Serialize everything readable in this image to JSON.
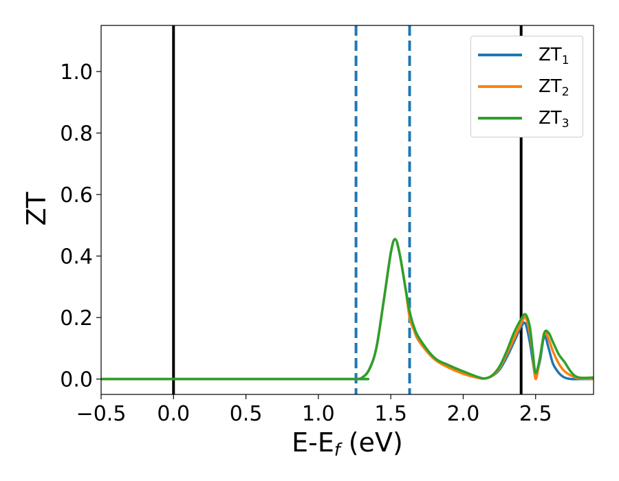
{
  "chart_data": {
    "type": "line",
    "title": "",
    "xlabel_main": "E-E",
    "xlabel_sub": "f",
    "xlabel_unit": " (eV)",
    "ylabel": "ZT",
    "xlim": [
      -0.5,
      2.9
    ],
    "ylim": [
      -0.05,
      1.15
    ],
    "xticks": [
      -0.5,
      0.0,
      0.5,
      1.0,
      1.5,
      2.0,
      2.5
    ],
    "xtick_labels": [
      "−0.5",
      "0.0",
      "0.5",
      "1.0",
      "1.5",
      "2.0",
      "2.5"
    ],
    "yticks": [
      0.0,
      0.2,
      0.4,
      0.6,
      0.8,
      1.0
    ],
    "ytick_labels": [
      "0.0",
      "0.2",
      "0.4",
      "0.6",
      "0.8",
      "1.0"
    ],
    "legend_position": "top-right",
    "vlines_solid": [
      0.0,
      2.4
    ],
    "vlines_dashed": [
      1.26,
      1.63
    ],
    "vline_solid_color": "#000000",
    "vline_dashed_color": "#1f77b4",
    "series": [
      {
        "name": "ZT",
        "subscript": "1",
        "color": "#1f77b4",
        "x": [
          -0.5,
          1.2,
          1.26,
          1.3,
          1.35,
          1.4,
          1.45,
          1.5,
          1.53,
          1.56,
          1.6,
          1.63,
          1.66,
          1.7,
          1.8,
          1.9,
          2.0,
          2.1,
          2.15,
          2.2,
          2.25,
          2.3,
          2.35,
          2.4,
          2.43,
          2.46,
          2.48,
          2.5,
          2.53,
          2.56,
          2.59,
          2.62,
          2.66,
          2.7,
          2.75,
          2.8,
          2.9
        ],
        "y": [
          0.0,
          0.0,
          0.0,
          0.004,
          0.03,
          0.1,
          0.25,
          0.41,
          0.455,
          0.41,
          0.3,
          0.22,
          0.16,
          0.12,
          0.065,
          0.04,
          0.02,
          0.005,
          0.002,
          0.01,
          0.03,
          0.07,
          0.12,
          0.17,
          0.18,
          0.12,
          0.06,
          0.01,
          0.06,
          0.14,
          0.1,
          0.05,
          0.02,
          0.005,
          0.0,
          0.0,
          0.0
        ]
      },
      {
        "name": "ZT",
        "subscript": "2",
        "color": "#ff7f0e",
        "x": [
          -0.5,
          1.2,
          1.26,
          1.3,
          1.35,
          1.4,
          1.45,
          1.5,
          1.53,
          1.56,
          1.6,
          1.63,
          1.66,
          1.7,
          1.8,
          1.9,
          2.0,
          2.1,
          2.15,
          2.2,
          2.25,
          2.3,
          2.35,
          2.4,
          2.43,
          2.46,
          2.48,
          2.5,
          2.53,
          2.56,
          2.59,
          2.62,
          2.66,
          2.7,
          2.75,
          2.8,
          2.9
        ],
        "y": [
          0.0,
          0.0,
          0.0,
          0.004,
          0.03,
          0.1,
          0.25,
          0.41,
          0.455,
          0.41,
          0.3,
          0.2,
          0.16,
          0.12,
          0.065,
          0.037,
          0.017,
          0.004,
          0.002,
          0.01,
          0.035,
          0.08,
          0.13,
          0.18,
          0.2,
          0.15,
          0.08,
          0.0,
          0.07,
          0.15,
          0.13,
          0.09,
          0.05,
          0.025,
          0.01,
          0.002,
          0.0
        ]
      },
      {
        "name": "ZT",
        "subscript": "3",
        "color": "#2ca02c",
        "x": [
          -0.5,
          1.2,
          1.26,
          1.3,
          1.35,
          1.4,
          1.45,
          1.5,
          1.53,
          1.56,
          1.6,
          1.63,
          1.66,
          1.7,
          1.8,
          1.9,
          2.0,
          2.1,
          2.15,
          2.2,
          2.25,
          2.3,
          2.35,
          2.4,
          2.43,
          2.46,
          2.48,
          2.5,
          2.53,
          2.56,
          2.59,
          2.62,
          2.66,
          2.7,
          2.75,
          2.8,
          2.9
        ],
        "y": [
          0.0,
          0.0,
          0.0,
          0.004,
          0.03,
          0.1,
          0.25,
          0.41,
          0.455,
          0.41,
          0.3,
          0.22,
          0.17,
          0.13,
          0.07,
          0.045,
          0.025,
          0.007,
          0.002,
          0.012,
          0.04,
          0.09,
          0.15,
          0.195,
          0.21,
          0.17,
          0.09,
          0.02,
          0.07,
          0.15,
          0.15,
          0.12,
          0.08,
          0.055,
          0.02,
          0.005,
          0.005
        ]
      }
    ]
  }
}
